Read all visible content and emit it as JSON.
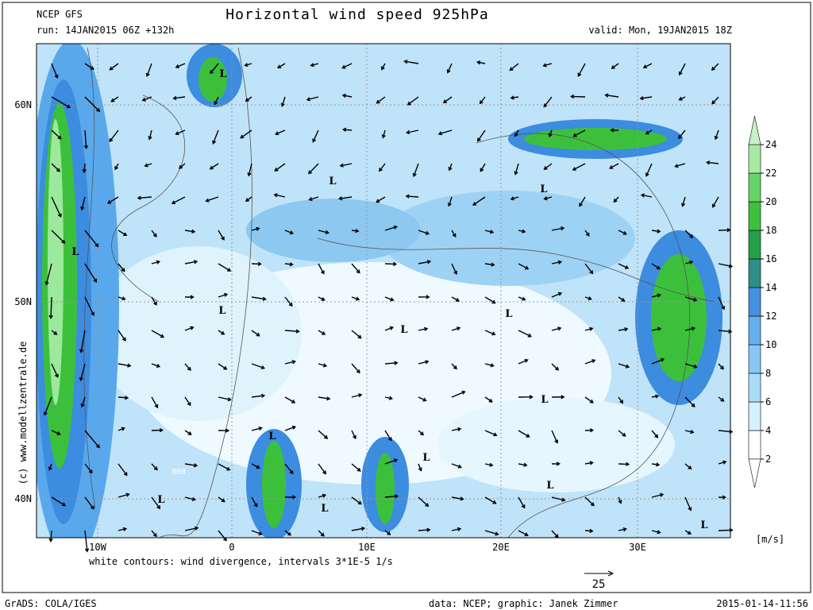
{
  "header": {
    "model": "NCEP GFS",
    "run": "run: 14JAN2015 06Z +132h",
    "title": "Horizontal wind speed 925hPa",
    "valid": "valid: Mon, 19JAN2015 18Z"
  },
  "map": {
    "lat_labels": [
      "60N",
      "50N",
      "40N"
    ],
    "lon_labels": [
      "10W",
      "0",
      "10E",
      "20E",
      "30E"
    ],
    "lows": [
      "L",
      "L",
      "L",
      "L",
      "L",
      "L",
      "L",
      "L",
      "L",
      "L",
      "L",
      "L",
      "L",
      "L"
    ],
    "contour_label": "800"
  },
  "colorbar": {
    "levels": [
      2,
      4,
      6,
      8,
      10,
      12,
      14,
      16,
      18,
      20,
      22,
      24
    ],
    "unit": "[m/s]"
  },
  "footer": {
    "note": "white contours: wind divergence, intervals 3*1E-5 1/s",
    "vector_ref": "25",
    "copyright": "(c) www.modellzentrale.de",
    "software": "GrADS: COLA/IGES",
    "credit": "data: NCEP; graphic: Janek Zimmer",
    "timestamp": "2015-01-14-11:56"
  }
}
